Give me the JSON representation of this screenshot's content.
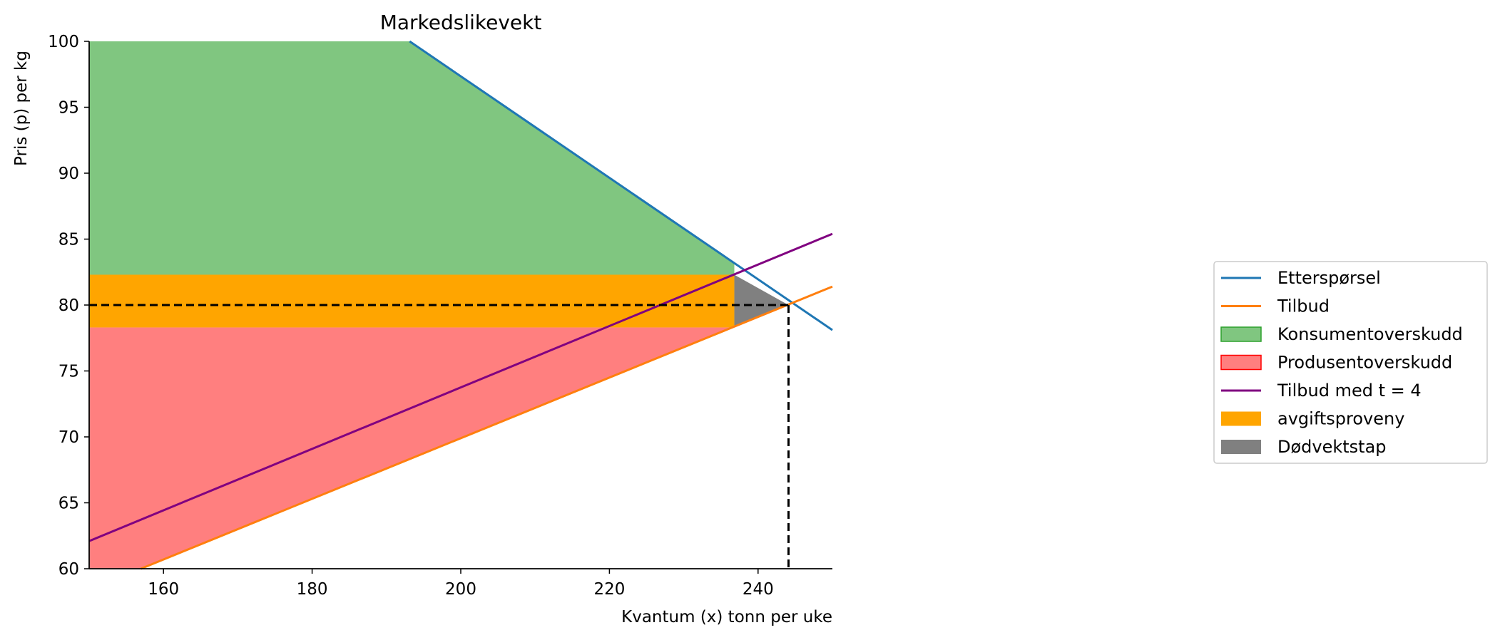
{
  "chart_data": {
    "type": "line",
    "title": "Markedslikevekt",
    "xlabel": "Kvantum (x) tonn per uke",
    "ylabel": "Pris (p) per kg",
    "xlim": [
      150,
      250
    ],
    "ylim": [
      60,
      100
    ],
    "xticks": [
      160,
      180,
      200,
      220,
      240
    ],
    "yticks": [
      60,
      65,
      70,
      75,
      80,
      85,
      90,
      95,
      100
    ],
    "grid": false,
    "legend_position": "center-right, outside the axes",
    "series": [
      {
        "name": "Etterspørsel",
        "kind": "line",
        "color": "#1f77b4",
        "x": [
          150,
          250
        ],
        "y": [
          116.6,
          78.1
        ]
      },
      {
        "name": "Tilbud",
        "kind": "line",
        "color": "#ff7f0e",
        "x": [
          150,
          250
        ],
        "y": [
          58.4,
          81.4
        ]
      },
      {
        "name": "Konsumentoverskudd",
        "kind": "area",
        "color": "#2ca02c",
        "alpha": 0.6,
        "x": [
          150,
          236.8
        ],
        "y_lower": 82.3,
        "y_upper_curve": "Etterspørsel"
      },
      {
        "name": "Produsentoverskudd",
        "kind": "area",
        "color": "#ff0000",
        "alpha": 0.5,
        "x": [
          150,
          236.8
        ],
        "y_upper": 78.3,
        "y_lower_curve": "Tilbud"
      },
      {
        "name": "Tilbud med t = 4",
        "kind": "line",
        "color": "#800080",
        "x": [
          150,
          250
        ],
        "y": [
          62.1,
          85.4
        ]
      },
      {
        "name": "avgiftsproveny",
        "kind": "rect",
        "color": "#ffa500",
        "x": [
          150,
          236.8
        ],
        "y": [
          78.3,
          82.3
        ]
      },
      {
        "name": "Dødvektstap",
        "kind": "triangle",
        "color": "#808080",
        "points": [
          [
            236.8,
            82.3
          ],
          [
            236.8,
            78.3
          ],
          [
            244.1,
            80.0
          ]
        ]
      }
    ],
    "equilibrium": {
      "x": 244.1,
      "y": 80.0
    }
  }
}
